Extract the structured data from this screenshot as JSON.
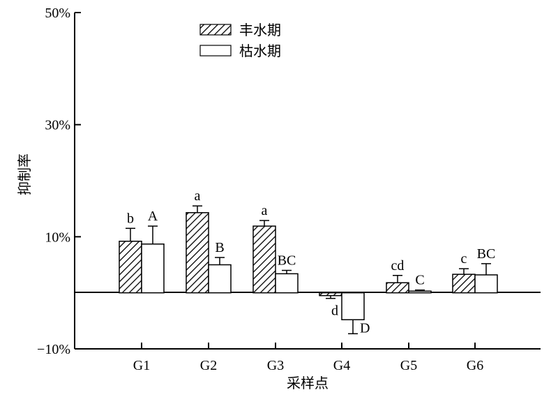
{
  "chart_data": {
    "type": "bar",
    "categories": [
      "G1",
      "G2",
      "G3",
      "G4",
      "G5",
      "G6"
    ],
    "xlabel": "采样点",
    "ylabel": "抑制率",
    "ylim": [
      -10,
      50
    ],
    "yticks": [
      {
        "value": -10,
        "label": "−10%"
      },
      {
        "value": 10,
        "label": "10%"
      },
      {
        "value": 30,
        "label": "30%"
      },
      {
        "value": 50,
        "label": "50%"
      }
    ],
    "legend_position": "top-center",
    "grid": false,
    "series": [
      {
        "name": "丰水期",
        "fill": "hatched",
        "values": [
          9.2,
          14.3,
          11.9,
          -0.5,
          1.8,
          3.3
        ],
        "errors": [
          2.3,
          1.2,
          1.0,
          0.5,
          1.3,
          1.0
        ],
        "labels": [
          "b",
          "a",
          "a",
          "d",
          "cd",
          "c"
        ]
      },
      {
        "name": "枯水期",
        "fill": "white",
        "values": [
          8.7,
          5.0,
          3.4,
          -4.8,
          0.3,
          3.2
        ],
        "errors": [
          3.2,
          1.3,
          0.6,
          2.5,
          0.2,
          2.0
        ],
        "labels": [
          "A",
          "B",
          "BC",
          "D",
          "C",
          "BC"
        ]
      }
    ]
  }
}
